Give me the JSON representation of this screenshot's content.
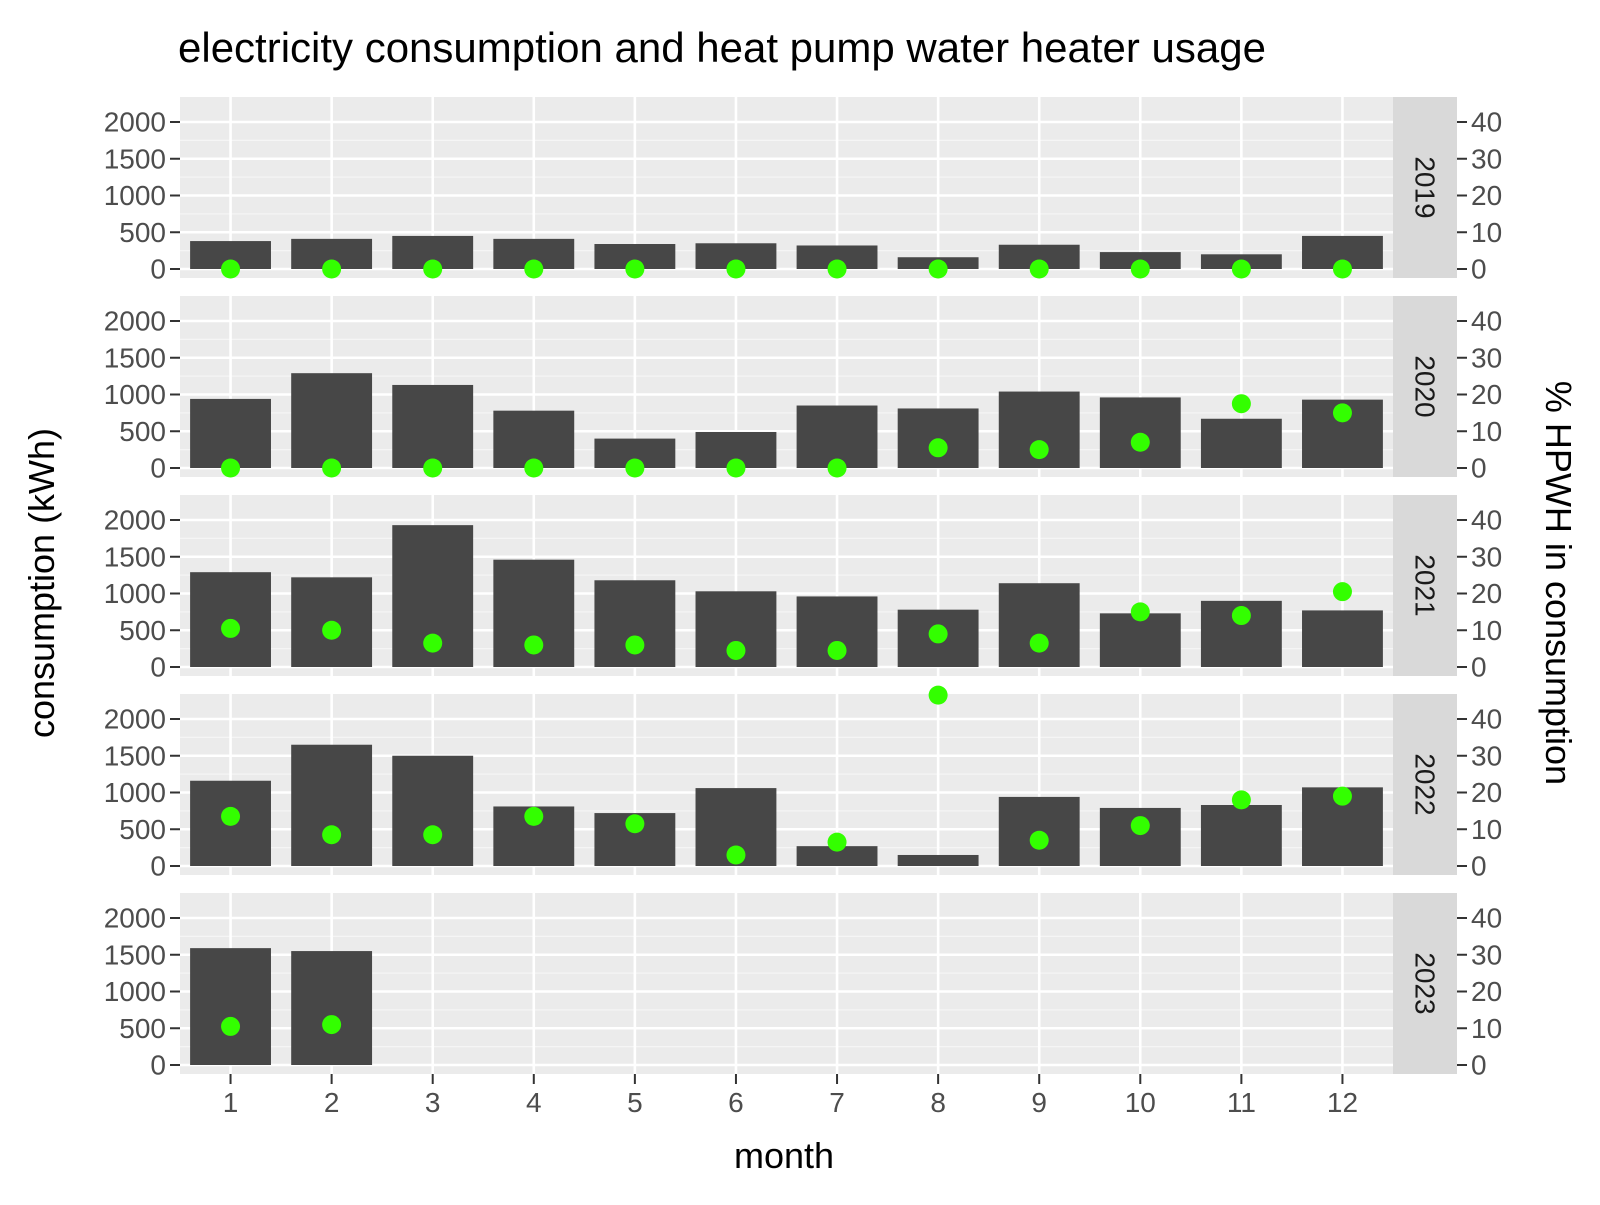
{
  "chart_data": {
    "type": "bar",
    "title": "electricity consumption and heat pump water heater usage",
    "xlabel": "month",
    "ylabel": "consumption (kWh)",
    "y2label": "% HPWH in consumption",
    "categories": [
      "1",
      "2",
      "3",
      "4",
      "5",
      "6",
      "7",
      "8",
      "9",
      "10",
      "11",
      "12"
    ],
    "ylim": [
      0,
      2000
    ],
    "y_ticks": [
      "0",
      "500",
      "1000",
      "1500",
      "2000"
    ],
    "y2lim": [
      0,
      40
    ],
    "y2_ticks": [
      "0",
      "10",
      "20",
      "30",
      "40"
    ],
    "bar_color": "#474747",
    "point_color": "#33ff00",
    "panel_background": "#ebebeb",
    "strip_background": "#d9d9d9",
    "grid": true,
    "panels": [
      {
        "year": "2019",
        "consumption": [
          380,
          410,
          450,
          410,
          340,
          350,
          320,
          160,
          330,
          230,
          200,
          450
        ],
        "hpwh_percent": [
          0,
          0,
          0,
          0,
          0,
          0,
          0,
          0,
          0,
          0,
          0,
          0
        ]
      },
      {
        "year": "2020",
        "consumption": [
          940,
          1290,
          1130,
          780,
          400,
          490,
          850,
          810,
          1040,
          960,
          670,
          930
        ],
        "hpwh_percent": [
          0,
          0,
          0,
          0,
          0,
          0,
          0,
          5.5,
          5,
          7,
          17.5,
          15
        ]
      },
      {
        "year": "2021",
        "consumption": [
          1290,
          1220,
          1930,
          1460,
          1180,
          1030,
          960,
          780,
          1140,
          730,
          900,
          770
        ],
        "hpwh_percent": [
          10.5,
          10,
          6.5,
          6,
          6,
          4.5,
          4.5,
          9,
          6.5,
          15,
          14,
          20.5
        ]
      },
      {
        "year": "2022",
        "consumption": [
          1160,
          1650,
          1500,
          810,
          720,
          1060,
          270,
          150,
          940,
          790,
          830,
          1070
        ],
        "hpwh_percent": [
          13.5,
          8.5,
          8.5,
          13.5,
          11.5,
          3,
          6.5,
          46.5,
          7,
          11,
          18,
          19
        ]
      },
      {
        "year": "2023",
        "consumption": [
          1590,
          1550,
          null,
          null,
          null,
          null,
          null,
          null,
          null,
          null,
          null,
          null
        ],
        "hpwh_percent": [
          10.5,
          11,
          null,
          null,
          null,
          null,
          null,
          null,
          null,
          null,
          null,
          null
        ]
      }
    ]
  }
}
